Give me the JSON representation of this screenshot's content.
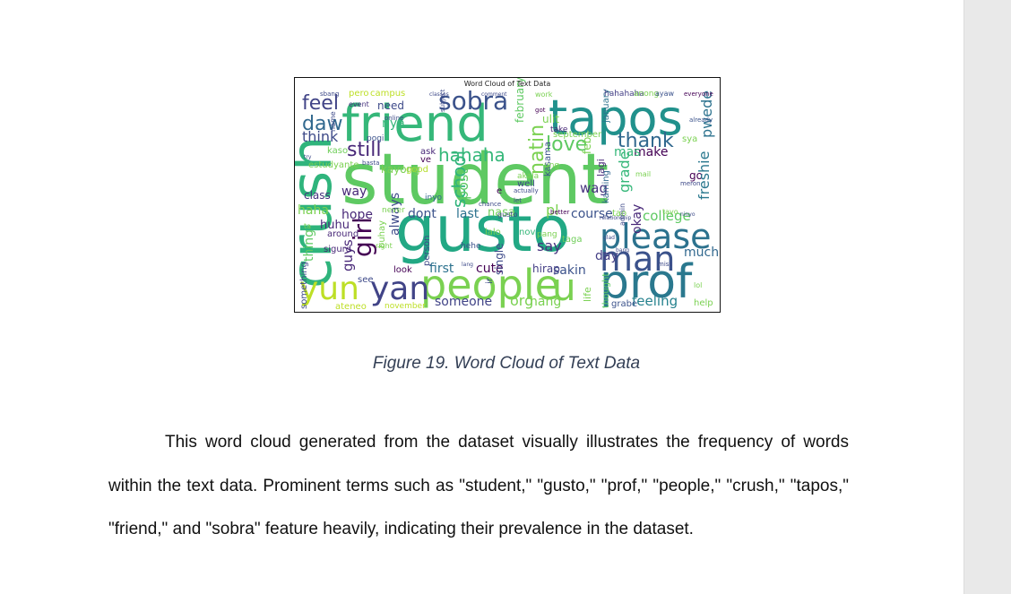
{
  "figure": {
    "image_title": "Word Cloud of Text Data",
    "caption": "Figure 19. Word Cloud of Text Data"
  },
  "paragraph": {
    "text": "This word cloud generated from the dataset visually illustrates the frequency of words within the text data. Prominent terms such as \"student,\" \"gusto,\" \"prof,\" \"people,\" \"crush,\" \"tapos,\" \"friend,\" and \"sobra\" feature heavily, indicating their prevalence in the dataset."
  },
  "word_cloud": {
    "words": [
      {
        "text": "student",
        "color": "#5ec962"
      },
      {
        "text": "gusto",
        "color": "#22a884"
      },
      {
        "text": "prof",
        "color": "#2a788e"
      },
      {
        "text": "people",
        "color": "#7ad151"
      },
      {
        "text": "crush",
        "color": "#2fb47c"
      },
      {
        "text": "tapos",
        "color": "#21918c"
      },
      {
        "text": "friend",
        "color": "#35b779"
      },
      {
        "text": "sobra",
        "color": "#3b528b"
      },
      {
        "text": "yun",
        "color": "#bddf26"
      },
      {
        "text": "yan",
        "color": "#414487"
      },
      {
        "text": "please",
        "color": "#2c728e"
      },
      {
        "text": "man",
        "color": "#3b528b"
      },
      {
        "text": "u",
        "color": "#7ad151"
      },
      {
        "text": "school",
        "color": "#2fb47c"
      },
      {
        "text": "girl",
        "color": "#440154"
      },
      {
        "text": "hahaha",
        "color": "#35b779"
      },
      {
        "text": "feel",
        "color": "#414487"
      },
      {
        "text": "daw",
        "color": "#31688e"
      },
      {
        "text": "think",
        "color": "#3e4a89"
      },
      {
        "text": "still",
        "color": "#482878"
      },
      {
        "text": "love",
        "color": "#5ec962"
      },
      {
        "text": "thank",
        "color": "#31688e"
      },
      {
        "text": "natin",
        "color": "#7ad151"
      },
      {
        "text": "okay",
        "color": "#482878"
      },
      {
        "text": "grade",
        "color": "#35b779"
      },
      {
        "text": "feeling",
        "color": "#26828e"
      },
      {
        "text": "college",
        "color": "#5ec962"
      },
      {
        "text": "someone",
        "color": "#414487"
      },
      {
        "text": "org",
        "color": "#7ad151"
      },
      {
        "text": "hang",
        "color": "#7ad151"
      },
      {
        "text": "first",
        "color": "#2c728e"
      },
      {
        "text": "cute",
        "color": "#440154"
      },
      {
        "text": "sakin",
        "color": "#3b528b"
      },
      {
        "text": "day",
        "color": "#433e85"
      },
      {
        "text": "much",
        "color": "#31688e"
      },
      {
        "text": "course",
        "color": "#3b528b"
      },
      {
        "text": "way",
        "color": "#482878"
      },
      {
        "text": "hope",
        "color": "#482878"
      },
      {
        "text": "dont",
        "color": "#3b528b"
      },
      {
        "text": "last",
        "color": "#2c728e"
      },
      {
        "text": "nasa",
        "color": "#6ece58"
      },
      {
        "text": "post",
        "color": "#5ec962"
      },
      {
        "text": "wag",
        "color": "#46327e"
      },
      {
        "text": "make",
        "color": "#440154"
      },
      {
        "text": "mas",
        "color": "#35b779"
      },
      {
        "text": "always",
        "color": "#3e4a89"
      },
      {
        "text": "guys",
        "color": "#482878"
      },
      {
        "text": "go",
        "color": "#440154"
      },
      {
        "text": "feb",
        "color": "#7ad151"
      },
      {
        "text": "haha",
        "color": "#7ad151"
      },
      {
        "text": "huhu",
        "color": "#482878"
      },
      {
        "text": "say",
        "color": "#46327e"
      },
      {
        "text": "pwede",
        "color": "#2c728e"
      },
      {
        "text": "freshie",
        "color": "#2a788e"
      },
      {
        "text": "thing",
        "color": "#5ec962"
      },
      {
        "text": "something",
        "color": "#3e4a89"
      },
      {
        "text": "need",
        "color": "#3e4a89"
      },
      {
        "text": "class",
        "color": "#46327e"
      },
      {
        "text": "ask",
        "color": "#482878"
      },
      {
        "text": "nya",
        "color": "#35b779"
      },
      {
        "text": "lagi",
        "color": "#482878"
      },
      {
        "text": "kasama",
        "color": "#3b528b"
      },
      {
        "text": "pl",
        "color": "#7ad151"
      },
      {
        "text": "lalo",
        "color": "#7ad151"
      },
      {
        "text": "kaming",
        "color": "#31688e"
      },
      {
        "text": "february",
        "color": "#5ec962"
      },
      {
        "text": "january",
        "color": "#2c728e"
      },
      {
        "text": "life",
        "color": "#7ad151"
      },
      {
        "text": "thought",
        "color": "#5ec962"
      },
      {
        "text": "single",
        "color": "#3e4a89"
      },
      {
        "text": "ir",
        "color": "#3e4a89"
      },
      {
        "text": "nov",
        "color": "#35b779"
      },
      {
        "text": "look",
        "color": "#440154"
      },
      {
        "text": "hirap",
        "color": "#433e85"
      },
      {
        "text": "grabe",
        "color": "#3b528b"
      },
      {
        "text": "help",
        "color": "#7ad151"
      },
      {
        "text": "lol",
        "color": "#7ad151"
      },
      {
        "text": "ateneo",
        "color": "#bddf26"
      },
      {
        "text": "november",
        "color": "#bddf26"
      },
      {
        "text": "see",
        "color": "#3e4a89"
      },
      {
        "text": "sigurd",
        "color": "#482878"
      },
      {
        "text": "around",
        "color": "#482878"
      },
      {
        "text": "well",
        "color": "#3e4a89"
      },
      {
        "text": "e",
        "color": "#440154"
      },
      {
        "text": "inyo",
        "color": "#31688e"
      },
      {
        "text": "good",
        "color": "#b5de2b"
      },
      {
        "text": "ve",
        "color": "#440154"
      },
      {
        "text": "kayong",
        "color": "#7ad151"
      },
      {
        "text": "kaso",
        "color": "#6ece58"
      },
      {
        "text": "pogi",
        "color": "#3b528b"
      },
      {
        "text": "online",
        "color": "#3e4a89"
      },
      {
        "text": "event",
        "color": "#46327e"
      },
      {
        "text": "campus",
        "color": "#bddf26"
      },
      {
        "text": "pero",
        "color": "#bddf26"
      },
      {
        "text": "sbang",
        "color": "#3e4a89"
      },
      {
        "text": "work",
        "color": "#7ad151"
      },
      {
        "text": "got",
        "color": "#440154"
      },
      {
        "text": "ulit",
        "color": "#7ad151"
      },
      {
        "text": "take",
        "color": "#482878"
      },
      {
        "text": "september",
        "color": "#7ad151"
      },
      {
        "text": "hahahaha",
        "color": "#433e85"
      },
      {
        "text": "anong",
        "color": "#7ad151"
      },
      {
        "text": "ayaw",
        "color": "#3b528b"
      },
      {
        "text": "everyone",
        "color": "#440154"
      },
      {
        "text": "sya",
        "color": "#7ad151"
      },
      {
        "text": "already",
        "color": "#3b528b"
      },
      {
        "text": "admin",
        "color": "#3e4a89"
      },
      {
        "text": "taga",
        "color": "#6ece58"
      },
      {
        "text": "pang",
        "color": "#7ad151"
      },
      {
        "text": "hehe",
        "color": "#3b528b"
      },
      {
        "text": "right",
        "color": "#7ad151"
      },
      {
        "text": "person",
        "color": "#3e4a89"
      },
      {
        "text": "buhay",
        "color": "#7ad151"
      },
      {
        "text": "never",
        "color": "#7ad151"
      },
      {
        "text": "better",
        "color": "#440154"
      },
      {
        "text": "tao",
        "color": "#7ad151"
      },
      {
        "text": "name",
        "color": "#3e4a89"
      },
      {
        "text": "subject",
        "color": "#3e4a89"
      },
      {
        "text": "classes",
        "color": "#3e4a89"
      },
      {
        "text": "comment",
        "color": "#3e4a89"
      },
      {
        "text": "estudyante",
        "color": "#7ad151"
      },
      {
        "text": "try",
        "color": "#3e4a89"
      },
      {
        "text": "basta",
        "color": "#3e4a89"
      },
      {
        "text": "ta",
        "color": "#7ad151"
      },
      {
        "text": "mail",
        "color": "#7ad151"
      },
      {
        "text": "tayo",
        "color": "#7ad151"
      },
      {
        "text": "ninyo",
        "color": "#3e4a89"
      },
      {
        "text": "miss",
        "color": "#3e4a89"
      },
      {
        "text": "meron",
        "color": "#3e4a89"
      },
      {
        "text": "ung",
        "color": "#7ad151"
      },
      {
        "text": "akala",
        "color": "#7ad151"
      },
      {
        "text": "actually",
        "color": "#3e4a89"
      },
      {
        "text": "let",
        "color": "#3e4a89"
      },
      {
        "text": "chance",
        "color": "#3e4a89"
      },
      {
        "text": "relationship",
        "color": "#3e4a89"
      },
      {
        "text": "gusto",
        "color": "#3e4a89"
      },
      {
        "text": "lang",
        "color": "#3e4a89"
      },
      {
        "text": "bang",
        "color": "#3e4a89"
      },
      {
        "text": "glad",
        "color": "#3e4a89"
      }
    ]
  }
}
